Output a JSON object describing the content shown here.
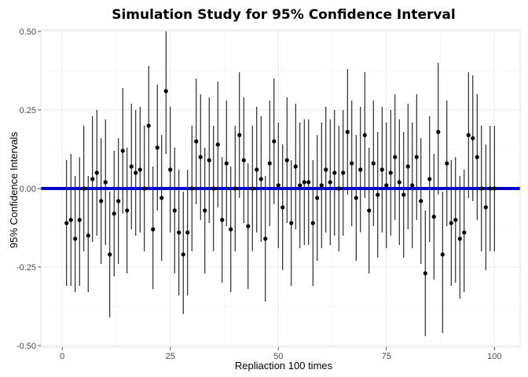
{
  "chart_data": {
    "type": "scatter",
    "title": "Simulation Study for 95% Confidence Interval",
    "xlabel": "Repliaction 100 times",
    "ylabel": "95% Confidence Intervals",
    "xlim": [
      -4.95,
      105.95
    ],
    "ylim": [
      -0.505,
      0.505
    ],
    "xticks": [
      0,
      25,
      50,
      75,
      100
    ],
    "xtick_labels": [
      "0",
      "25",
      "50",
      "75",
      "100"
    ],
    "yticks": [
      -0.5,
      -0.25,
      0.0,
      0.25,
      0.5
    ],
    "ytick_labels": [
      "-0.50",
      "-0.25",
      "0.00",
      "0.25",
      "0.50"
    ],
    "grid": true,
    "reference_line": {
      "y": 0,
      "color": "#0000cc"
    },
    "point_color": "#000000",
    "series": [
      {
        "x": [
          1,
          2,
          3,
          4,
          5,
          6,
          7,
          8,
          9,
          10,
          11,
          12,
          13,
          14,
          15,
          16,
          17,
          18,
          19,
          20,
          21,
          22,
          23,
          24,
          25,
          26,
          27,
          28,
          29,
          30,
          31,
          32,
          33,
          34,
          35,
          36,
          37,
          38,
          39,
          40,
          41,
          42,
          43,
          44,
          45,
          46,
          47,
          48,
          49,
          50,
          51,
          52,
          53,
          54,
          55,
          56,
          57,
          58,
          59,
          60,
          61,
          62,
          63,
          64,
          65,
          66,
          67,
          68,
          69,
          70,
          71,
          72,
          73,
          74,
          75,
          76,
          77,
          78,
          79,
          80,
          81,
          82,
          83,
          84,
          85,
          86,
          87,
          88,
          89,
          90,
          91,
          92,
          93,
          94,
          95,
          96,
          97,
          98,
          99,
          100
        ],
        "y": [
          -0.11,
          -0.1,
          -0.16,
          -0.1,
          0.0,
          -0.15,
          0.03,
          0.05,
          -0.04,
          0.02,
          -0.21,
          -0.08,
          -0.04,
          0.12,
          -0.07,
          0.07,
          0.05,
          0.06,
          0.0,
          0.2,
          -0.13,
          0.13,
          -0.03,
          0.31,
          0.06,
          -0.07,
          -0.14,
          -0.21,
          -0.14,
          0.0,
          0.15,
          0.1,
          -0.07,
          0.09,
          0.0,
          0.14,
          -0.1,
          0.08,
          -0.13,
          0.0,
          0.17,
          0.09,
          -0.12,
          0.0,
          0.06,
          0.03,
          -0.16,
          0.08,
          0.15,
          0.01,
          -0.06,
          0.09,
          -0.11,
          0.07,
          0.01,
          0.02,
          0.02,
          -0.11,
          -0.03,
          0.01,
          0.06,
          0.02,
          0.05,
          0.0,
          0.05,
          0.18,
          0.08,
          -0.03,
          0.06,
          0.17,
          -0.07,
          0.08,
          -0.02,
          0.06,
          0.01,
          0.05,
          0.1,
          0.02,
          -0.02,
          0.07,
          0.01,
          0.1,
          -0.04,
          -0.27,
          0.03,
          -0.09,
          0.18,
          -0.21,
          0.08,
          -0.11,
          -0.1,
          -0.16,
          -0.14,
          0.17,
          0.16,
          0.1,
          0.0,
          -0.06,
          0.0,
          0.0
        ],
        "lower": [
          -0.31,
          -0.31,
          -0.33,
          -0.31,
          -0.2,
          -0.33,
          -0.17,
          -0.15,
          -0.24,
          -0.18,
          -0.41,
          -0.28,
          -0.24,
          -0.08,
          -0.27,
          -0.13,
          -0.15,
          -0.14,
          -0.2,
          0.0,
          -0.32,
          -0.07,
          -0.23,
          0.11,
          -0.14,
          -0.27,
          -0.34,
          -0.4,
          -0.34,
          -0.2,
          -0.05,
          -0.1,
          -0.27,
          -0.11,
          -0.2,
          -0.06,
          -0.3,
          -0.12,
          -0.33,
          -0.2,
          -0.03,
          -0.11,
          -0.32,
          -0.2,
          -0.14,
          -0.17,
          -0.36,
          -0.12,
          -0.05,
          -0.19,
          -0.26,
          -0.11,
          -0.31,
          -0.13,
          -0.19,
          -0.18,
          -0.18,
          -0.31,
          -0.23,
          -0.19,
          -0.14,
          -0.18,
          -0.15,
          -0.2,
          -0.15,
          -0.02,
          -0.12,
          -0.23,
          -0.14,
          -0.03,
          -0.27,
          -0.12,
          -0.22,
          -0.14,
          -0.19,
          -0.15,
          -0.1,
          -0.18,
          -0.22,
          -0.13,
          -0.19,
          -0.1,
          -0.24,
          -0.47,
          -0.17,
          -0.29,
          -0.02,
          -0.46,
          -0.12,
          -0.31,
          -0.3,
          -0.35,
          -0.33,
          -0.03,
          -0.04,
          -0.1,
          -0.2,
          -0.26,
          -0.2,
          -0.2
        ],
        "upper": [
          0.09,
          0.11,
          0.04,
          0.1,
          0.2,
          0.04,
          0.23,
          0.25,
          0.16,
          0.22,
          -0.01,
          0.12,
          0.16,
          0.32,
          0.13,
          0.27,
          0.25,
          0.26,
          0.2,
          0.39,
          0.07,
          0.33,
          0.17,
          0.5,
          0.26,
          0.13,
          0.06,
          -0.01,
          0.06,
          0.2,
          0.35,
          0.3,
          0.13,
          0.29,
          0.2,
          0.34,
          0.1,
          0.28,
          0.07,
          0.2,
          0.37,
          0.29,
          0.08,
          0.2,
          0.26,
          0.23,
          0.04,
          0.28,
          0.35,
          0.21,
          0.14,
          0.29,
          0.09,
          0.27,
          0.21,
          0.22,
          0.22,
          0.09,
          0.17,
          0.21,
          0.26,
          0.22,
          0.25,
          0.2,
          0.25,
          0.38,
          0.28,
          0.17,
          0.26,
          0.37,
          0.13,
          0.28,
          0.18,
          0.26,
          0.21,
          0.25,
          0.3,
          0.22,
          0.18,
          0.27,
          0.21,
          0.3,
          0.16,
          -0.07,
          0.23,
          0.11,
          0.4,
          -0.01,
          0.28,
          0.09,
          0.1,
          0.04,
          0.06,
          0.37,
          0.36,
          0.3,
          0.2,
          0.14,
          0.2,
          0.2
        ]
      }
    ]
  }
}
